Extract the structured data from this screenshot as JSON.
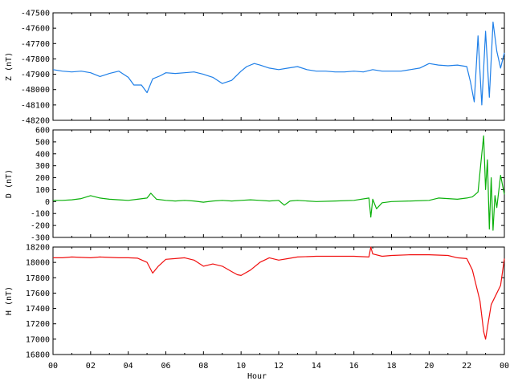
{
  "chart_data": [
    {
      "type": "line",
      "ylabel": "Z (nT)",
      "color": "#1e7fe8",
      "ylim": [
        -48200,
        -47500
      ],
      "yticks": [
        -47500,
        -47600,
        -47700,
        -47800,
        -47900,
        -48000,
        -48100,
        -48200
      ],
      "x": [
        0,
        0.5,
        1,
        1.5,
        2,
        2.5,
        3,
        3.5,
        4,
        4.3,
        4.7,
        5,
        5.3,
        5.7,
        6,
        6.5,
        7,
        7.5,
        8,
        8.5,
        9,
        9.5,
        10,
        10.3,
        10.7,
        11,
        11.5,
        12,
        12.5,
        13,
        13.5,
        14,
        14.5,
        15,
        15.5,
        16,
        16.5,
        17,
        17.5,
        18,
        18.5,
        19,
        19.5,
        20,
        20.5,
        21,
        21.5,
        22,
        22.2,
        22.4,
        22.6,
        22.8,
        23,
        23.2,
        23.4,
        23.6,
        23.8,
        24
      ],
      "values": [
        -47870,
        -47880,
        -47885,
        -47880,
        -47890,
        -47915,
        -47895,
        -47880,
        -47920,
        -47970,
        -47970,
        -48020,
        -47930,
        -47910,
        -47890,
        -47895,
        -47890,
        -47885,
        -47900,
        -47920,
        -47960,
        -47940,
        -47880,
        -47850,
        -47830,
        -47840,
        -47860,
        -47870,
        -47860,
        -47850,
        -47870,
        -47880,
        -47880,
        -47885,
        -47885,
        -47880,
        -47885,
        -47870,
        -47880,
        -47880,
        -47880,
        -47870,
        -47860,
        -47830,
        -47840,
        -47845,
        -47840,
        -47850,
        -47950,
        -48080,
        -47650,
        -48100,
        -47620,
        -48050,
        -47560,
        -47750,
        -47860,
        -47760
      ]
    },
    {
      "type": "line",
      "ylabel": "D (nT)",
      "color": "#0ab00a",
      "ylim": [
        -300,
        600
      ],
      "yticks": [
        600,
        500,
        400,
        300,
        200,
        100,
        0,
        -100,
        -200,
        -300
      ],
      "x": [
        0,
        0.5,
        1,
        1.5,
        2,
        2.5,
        3,
        3.5,
        4,
        4.5,
        5,
        5.2,
        5.5,
        6,
        6.5,
        7,
        7.5,
        8,
        8.5,
        9,
        9.5,
        10,
        10.5,
        11,
        11.5,
        12,
        12.3,
        12.6,
        13,
        14,
        15,
        16,
        16.8,
        16.9,
        17,
        17.2,
        17.5,
        18,
        19,
        20,
        20.5,
        21,
        21.5,
        22,
        22.3,
        22.6,
        22.8,
        22.9,
        23,
        23.1,
        23.2,
        23.3,
        23.4,
        23.5,
        23.6,
        23.8,
        24
      ],
      "values": [
        10,
        10,
        15,
        25,
        50,
        30,
        20,
        15,
        10,
        20,
        30,
        70,
        20,
        10,
        5,
        10,
        5,
        -5,
        5,
        10,
        5,
        10,
        15,
        10,
        5,
        10,
        -30,
        5,
        10,
        0,
        5,
        10,
        30,
        -130,
        20,
        -60,
        -10,
        0,
        5,
        10,
        30,
        25,
        20,
        30,
        40,
        80,
        400,
        550,
        100,
        350,
        -230,
        200,
        -240,
        50,
        -50,
        220,
        60
      ]
    },
    {
      "type": "line",
      "ylabel": "H (nT)",
      "color": "#f01010",
      "ylim": [
        16800,
        18200
      ],
      "yticks": [
        18200,
        18000,
        17800,
        17600,
        17400,
        17200,
        17000,
        16800
      ],
      "xlabel": "Hour",
      "x": [
        0,
        0.5,
        1,
        1.5,
        2,
        2.5,
        3,
        3.5,
        4,
        4.5,
        5,
        5.3,
        5.6,
        6,
        6.5,
        7,
        7.5,
        8,
        8.5,
        9,
        9.5,
        9.8,
        10,
        10.5,
        11,
        11.5,
        12,
        12.5,
        13,
        14,
        15,
        16,
        16.8,
        16.9,
        17,
        17.5,
        18,
        19,
        20,
        21,
        21.5,
        22,
        22.3,
        22.5,
        22.7,
        22.8,
        22.9,
        23,
        23.1,
        23.3,
        23.5,
        23.8,
        24
      ],
      "values": [
        18060,
        18060,
        18070,
        18065,
        18060,
        18070,
        18065,
        18060,
        18060,
        18055,
        18000,
        17860,
        17950,
        18040,
        18050,
        18060,
        18030,
        17950,
        17980,
        17950,
        17880,
        17840,
        17830,
        17900,
        18000,
        18060,
        18030,
        18050,
        18070,
        18080,
        18080,
        18080,
        18070,
        18200,
        18110,
        18080,
        18090,
        18100,
        18100,
        18090,
        18060,
        18050,
        17900,
        17700,
        17500,
        17300,
        17100,
        17000,
        17150,
        17450,
        17550,
        17700,
        18050
      ]
    }
  ],
  "xaxis": {
    "label": "Hour",
    "ticks": [
      "00",
      "02",
      "04",
      "06",
      "08",
      "10",
      "12",
      "14",
      "16",
      "18",
      "20",
      "22",
      "00"
    ],
    "range": [
      0,
      24
    ]
  }
}
